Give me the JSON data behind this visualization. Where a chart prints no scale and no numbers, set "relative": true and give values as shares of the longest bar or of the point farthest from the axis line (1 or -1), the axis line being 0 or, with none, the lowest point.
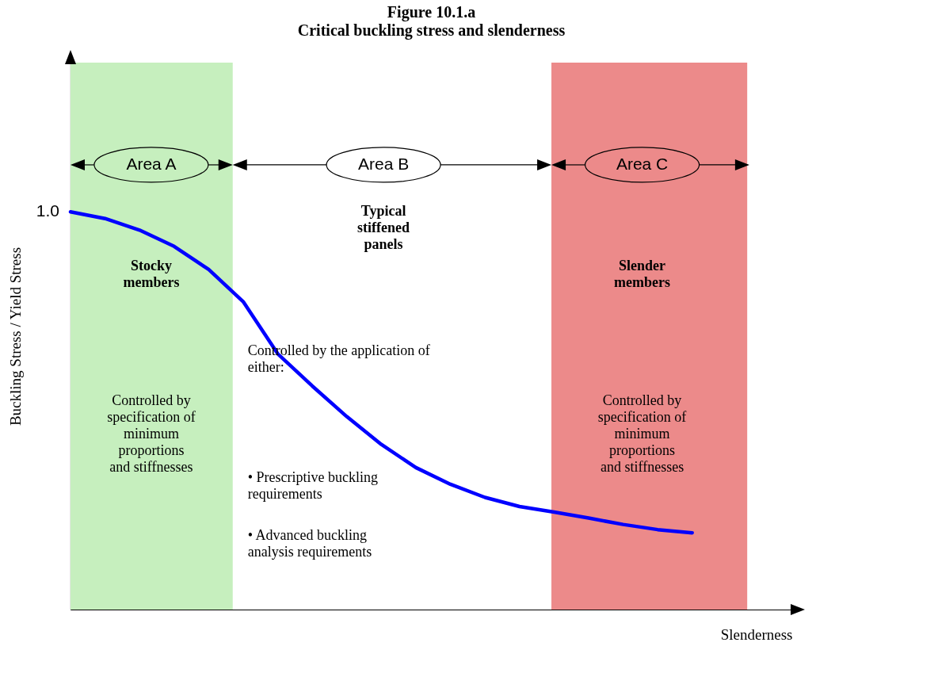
{
  "chart_data": {
    "type": "line",
    "title": "Figure 10.1.a",
    "subtitle": "Critical buckling stress and slenderness",
    "xlabel": "Slenderness",
    "ylabel": "Buckling Stress / Yield Stress",
    "relative": true,
    "line_style": "solid",
    "categories": [
      null,
      null,
      null,
      null,
      null,
      null,
      null,
      null,
      null,
      null,
      null,
      null,
      null,
      null,
      null,
      null,
      null,
      null,
      null
    ],
    "series": [
      {
        "color": "#0000ff",
        "values": [
          1.0,
          0.983,
          0.954,
          0.913,
          0.855,
          0.774,
          0.643,
          0.562,
          0.485,
          0.415,
          0.357,
          0.315,
          0.282,
          0.259,
          0.245,
          0.23,
          0.214,
          0.201,
          0.193
        ]
      }
    ],
    "annotations": [
      "Area A",
      "Area B",
      "Area C",
      "Stocky\nmembers",
      "Controlled by\nspecification of\nminimum\nproportions\nand stiffnesses",
      "Typical\nstiffened\npanels",
      "Controlled by the application of\neither:",
      "•      Prescriptive buckling\n        requirements",
      "•      Advanced buckling\n        analysis requirements",
      "Slender\nmembers",
      "Controlled by\nspecification of\nminimum\nproportions\nand stiffnesses",
      "1.0"
    ]
  }
}
